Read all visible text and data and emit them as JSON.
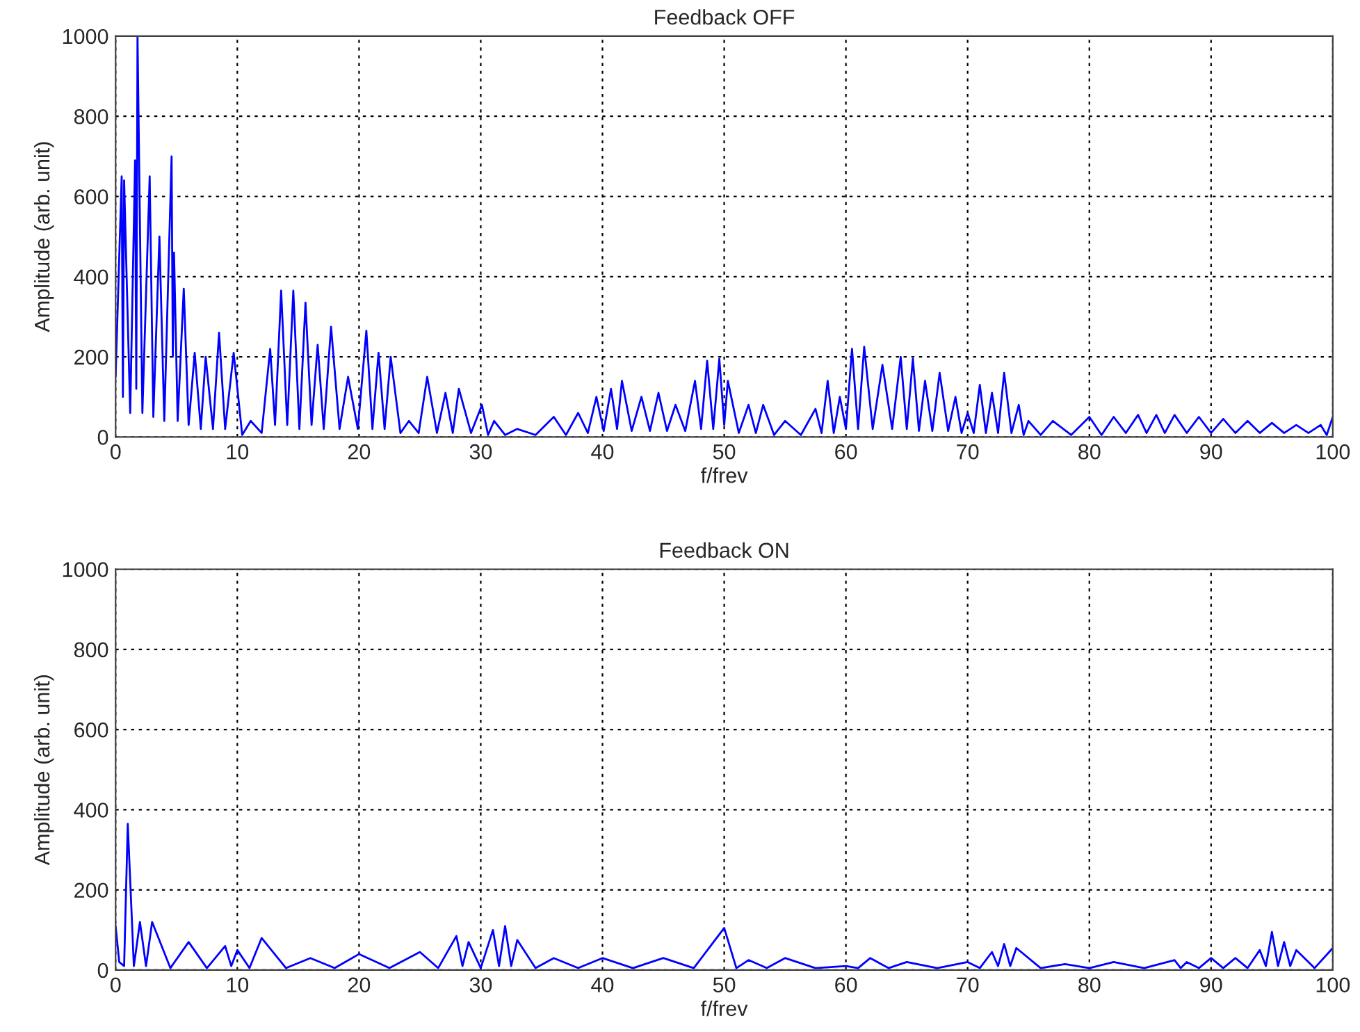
{
  "chart_data": [
    {
      "type": "line",
      "title": "Feedback OFF",
      "xlabel": "f/frev",
      "ylabel": "Amplitude (arb. unit)",
      "xlim": [
        0,
        100
      ],
      "ylim": [
        0,
        1000
      ],
      "xticks": [
        0,
        10,
        20,
        30,
        40,
        50,
        60,
        70,
        80,
        90,
        100
      ],
      "yticks": [
        0,
        200,
        400,
        600,
        800,
        1000
      ],
      "grid": true,
      "line_style": "solid",
      "series": [
        {
          "color": "#0000ff",
          "x": [
            0,
            0.5,
            0.6,
            0.7,
            1.2,
            1.6,
            1.7,
            1.8,
            2.2,
            2.8,
            3.1,
            3.6,
            4.0,
            4.6,
            4.7,
            4.8,
            5.1,
            5.6,
            6.0,
            6.5,
            7.0,
            7.4,
            8.0,
            8.5,
            9.0,
            9.7,
            10.4,
            11.1,
            12.0,
            12.7,
            13.1,
            13.6,
            14.1,
            14.6,
            15.1,
            15.6,
            16.1,
            16.6,
            17.1,
            17.7,
            18.4,
            19.1,
            19.9,
            20.6,
            21.1,
            21.6,
            22.1,
            22.6,
            23.4,
            24.1,
            24.9,
            25.6,
            26.4,
            27.1,
            27.7,
            28.2,
            29.2,
            30.1,
            30.6,
            31.1,
            32.0,
            33.0,
            34.5,
            36.0,
            37.0,
            38.0,
            38.8,
            39.5,
            40.1,
            40.7,
            41.2,
            41.6,
            42.4,
            43.2,
            43.9,
            44.6,
            45.3,
            46.0,
            46.8,
            47.6,
            48.1,
            48.6,
            49.1,
            49.6,
            50.0,
            50.3,
            51.2,
            52.0,
            52.6,
            53.2,
            54.1,
            55.0,
            56.3,
            57.5,
            58.0,
            58.5,
            59.0,
            59.5,
            60.0,
            60.5,
            61.0,
            61.5,
            62.2,
            63.0,
            63.8,
            64.5,
            65.0,
            65.5,
            66.0,
            66.5,
            67.1,
            67.7,
            68.4,
            69.0,
            69.5,
            70.0,
            70.5,
            71.0,
            71.5,
            72.0,
            72.5,
            73.0,
            73.6,
            74.2,
            74.6,
            75.0,
            76.0,
            77.0,
            78.5,
            80.0,
            81.0,
            82.0,
            83.0,
            84.0,
            84.7,
            85.5,
            86.2,
            87.0,
            88.0,
            89.0,
            90.0,
            91.0,
            92.0,
            93.0,
            94.0,
            95.0,
            96.0,
            97.0,
            98.0,
            99.0,
            99.5,
            100.0
          ],
          "values": [
            150,
            650,
            100,
            640,
            60,
            690,
            120,
            1000,
            60,
            650,
            50,
            500,
            40,
            700,
            200,
            460,
            40,
            370,
            30,
            210,
            20,
            200,
            20,
            260,
            20,
            210,
            5,
            40,
            10,
            220,
            30,
            365,
            30,
            365,
            20,
            335,
            30,
            230,
            20,
            275,
            20,
            150,
            20,
            265,
            20,
            210,
            20,
            200,
            10,
            40,
            10,
            150,
            10,
            110,
            10,
            120,
            10,
            80,
            5,
            40,
            5,
            20,
            5,
            50,
            5,
            60,
            10,
            100,
            15,
            120,
            20,
            140,
            15,
            100,
            15,
            110,
            15,
            80,
            15,
            140,
            20,
            190,
            20,
            195,
            30,
            140,
            10,
            80,
            10,
            80,
            5,
            40,
            5,
            70,
            10,
            140,
            10,
            100,
            20,
            220,
            20,
            225,
            20,
            180,
            20,
            200,
            20,
            195,
            15,
            140,
            15,
            160,
            15,
            100,
            10,
            60,
            10,
            130,
            10,
            110,
            10,
            160,
            10,
            80,
            5,
            40,
            5,
            40,
            5,
            50,
            5,
            50,
            10,
            55,
            10,
            55,
            10,
            55,
            10,
            50,
            10,
            45,
            10,
            40,
            10,
            35,
            10,
            30,
            10,
            30,
            5,
            50
          ]
        }
      ]
    },
    {
      "type": "line",
      "title": "Feedback ON",
      "xlabel": "f/frev",
      "ylabel": "Amplitude (arb. unit)",
      "xlim": [
        0,
        100
      ],
      "ylim": [
        0,
        1000
      ],
      "xticks": [
        0,
        10,
        20,
        30,
        40,
        50,
        60,
        70,
        80,
        90,
        100
      ],
      "yticks": [
        0,
        200,
        400,
        600,
        800,
        1000
      ],
      "grid": true,
      "line_style": "solid",
      "series": [
        {
          "color": "#0000ff",
          "x": [
            0,
            0.3,
            0.7,
            1.0,
            1.5,
            2.0,
            2.5,
            3.0,
            4.5,
            6.0,
            7.5,
            9.0,
            9.5,
            10.0,
            11.0,
            12.0,
            14.0,
            16.0,
            18.0,
            20.0,
            22.5,
            25.0,
            26.5,
            28.0,
            28.5,
            29.0,
            30.0,
            31.0,
            31.5,
            32.0,
            32.5,
            33.0,
            34.5,
            36.0,
            38.0,
            40.0,
            42.5,
            45.0,
            47.5,
            50.0,
            51.0,
            52.0,
            53.5,
            55.0,
            57.5,
            60.0,
            61.0,
            62.0,
            63.5,
            65.0,
            67.5,
            70.0,
            71.0,
            72.0,
            72.5,
            73.0,
            73.5,
            74.0,
            76.0,
            78.0,
            80.0,
            82.0,
            84.5,
            87.0,
            87.5,
            88.0,
            89.0,
            90.0,
            91.0,
            92.0,
            93.0,
            94.0,
            94.5,
            95.0,
            95.5,
            96.0,
            96.5,
            97.0,
            98.5,
            100.0
          ],
          "values": [
            110,
            20,
            10,
            365,
            10,
            120,
            10,
            120,
            5,
            70,
            5,
            60,
            10,
            50,
            5,
            80,
            5,
            30,
            5,
            40,
            5,
            45,
            5,
            85,
            10,
            70,
            5,
            100,
            10,
            110,
            10,
            75,
            5,
            30,
            5,
            30,
            5,
            30,
            5,
            105,
            5,
            25,
            5,
            30,
            5,
            10,
            5,
            30,
            5,
            20,
            5,
            20,
            5,
            45,
            10,
            65,
            10,
            55,
            5,
            15,
            5,
            20,
            5,
            25,
            5,
            20,
            5,
            30,
            5,
            30,
            5,
            50,
            10,
            95,
            10,
            70,
            10,
            50,
            5,
            55
          ]
        }
      ]
    }
  ]
}
